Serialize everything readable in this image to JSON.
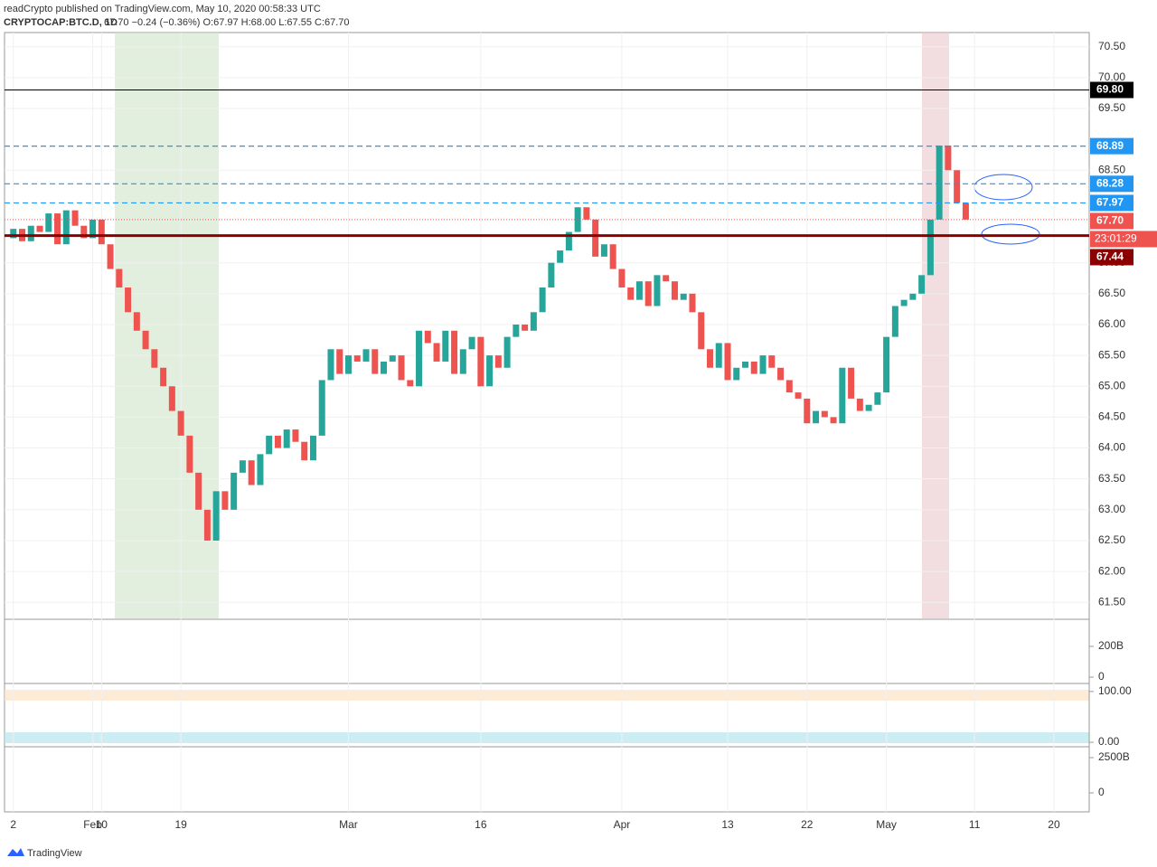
{
  "header": {
    "publisher": "readCrypto published on TradingView.com, May 10, 2020 00:58:33 UTC",
    "symbol": "CRYPTOCAP:BTC.D, 1D",
    "quote": "67.70 −0.24 (−0.36%) O:67.97 H:68.00 L:67.55 C:67.70"
  },
  "chart_data": {
    "type": "candlestick",
    "open": [
      67.4,
      67.55,
      67.35,
      67.6,
      67.5,
      67.8,
      67.3,
      67.85,
      67.6,
      67.4,
      67.7,
      67.3,
      66.9,
      66.6,
      66.2,
      65.9,
      65.6,
      65.3,
      65.0,
      64.6,
      64.2,
      63.6,
      63.0,
      62.5,
      63.3,
      63.0,
      63.6,
      63.8,
      63.4,
      63.9,
      64.2,
      64.0,
      64.3,
      64.1,
      63.8,
      64.2,
      65.1,
      65.6,
      65.2,
      65.5,
      65.4,
      65.6,
      65.2,
      65.4,
      65.5,
      65.1,
      65.0,
      65.9,
      65.7,
      65.4,
      65.9,
      65.2,
      65.6,
      65.8,
      65.0,
      65.5,
      65.3,
      65.8,
      66.0,
      65.9,
      66.2,
      66.6,
      67.0,
      67.2,
      67.5,
      67.9,
      67.7,
      67.1,
      67.3,
      66.9,
      66.6,
      66.4,
      66.7,
      66.3,
      66.8,
      66.7,
      66.4,
      66.5,
      66.2,
      65.6,
      65.3,
      65.7,
      65.1,
      65.3,
      65.4,
      65.2,
      65.5,
      65.3,
      65.1,
      64.9,
      64.8,
      64.4,
      64.6,
      64.5,
      64.4,
      65.3,
      64.8,
      64.6,
      64.7,
      64.9,
      65.8,
      66.3,
      66.4,
      66.5,
      66.8,
      67.7,
      68.9,
      68.5,
      67.97
    ],
    "close": [
      67.55,
      67.35,
      67.6,
      67.5,
      67.8,
      67.3,
      67.85,
      67.6,
      67.4,
      67.7,
      67.3,
      66.9,
      66.6,
      66.2,
      65.9,
      65.6,
      65.3,
      65.0,
      64.6,
      64.2,
      63.6,
      63.0,
      62.5,
      63.3,
      63.0,
      63.6,
      63.8,
      63.4,
      63.9,
      64.2,
      64.0,
      64.3,
      64.1,
      63.8,
      64.2,
      65.1,
      65.6,
      65.2,
      65.5,
      65.4,
      65.6,
      65.2,
      65.4,
      65.5,
      65.1,
      65.0,
      65.9,
      65.7,
      65.4,
      65.9,
      65.2,
      65.6,
      65.8,
      65.0,
      65.5,
      65.3,
      65.8,
      66.0,
      65.9,
      66.2,
      66.6,
      67.0,
      67.2,
      67.5,
      67.9,
      67.7,
      67.1,
      67.3,
      66.9,
      66.6,
      66.4,
      66.7,
      66.3,
      66.8,
      66.7,
      66.4,
      66.5,
      66.2,
      65.6,
      65.3,
      65.7,
      65.1,
      65.3,
      65.4,
      65.2,
      65.5,
      65.3,
      65.1,
      64.9,
      64.8,
      64.4,
      64.6,
      64.5,
      64.4,
      65.3,
      64.8,
      64.6,
      64.7,
      64.9,
      65.8,
      66.3,
      66.4,
      66.5,
      66.8,
      67.7,
      68.9,
      68.5,
      67.97,
      67.7
    ],
    "up_color": "#26a69a",
    "down_color": "#ef5350",
    "xlim": [
      -1,
      122
    ],
    "xticks": [
      {
        "value": 0,
        "label": "2"
      },
      {
        "value": 9,
        "label": "Feb"
      },
      10,
      19,
      {
        "value": 38,
        "label": "Mar"
      },
      {
        "value": 53,
        "label": "16"
      },
      {
        "value": 69,
        "label": "Apr"
      },
      {
        "value": 81,
        "label": "13"
      },
      {
        "value": 90,
        "label": "22"
      },
      {
        "value": 99,
        "label": "May"
      },
      {
        "value": 109,
        "label": "11"
      },
      {
        "value": 118,
        "label": "20"
      }
    ],
    "ylim": [
      61.24,
      70.73
    ],
    "yticks": [
      {
        "value": 61.5,
        "label": "61.50"
      },
      {
        "value": 62,
        "label": "62.00"
      },
      {
        "value": 62.5,
        "label": "62.50"
      },
      {
        "value": 63,
        "label": "63.00"
      },
      {
        "value": 63.5,
        "label": "63.50"
      },
      {
        "value": 64,
        "label": "64.00"
      },
      {
        "value": 64.5,
        "label": "64.50"
      },
      {
        "value": 65,
        "label": "65.00"
      },
      {
        "value": 65.5,
        "label": "65.50"
      },
      {
        "value": 66,
        "label": "66.00"
      },
      {
        "value": 66.5,
        "label": "66.50"
      },
      {
        "value": 67,
        "label": "67.00"
      },
      {
        "value": 68.5,
        "label": "68.50"
      },
      {
        "value": 69.5,
        "label": "69.50"
      },
      {
        "value": 70,
        "label": "70.00"
      },
      {
        "value": 70.5,
        "label": "70.50"
      }
    ],
    "grid": true,
    "levels": [
      {
        "value": 69.8,
        "label": "69.80",
        "color": "#000000",
        "style": "solid"
      },
      {
        "value": 68.89,
        "label": "68.89",
        "color": "#2196f3",
        "style": "dashed"
      },
      {
        "value": 68.28,
        "label": "68.28",
        "color": "#2196f3",
        "style": "dashed"
      },
      {
        "value": 67.97,
        "label": "67.97",
        "color": "#2196f3",
        "style": "dashed"
      },
      {
        "value": 67.7,
        "label": "67.70",
        "color": "#ef5350",
        "style": "dotted"
      },
      {
        "value": 67.44,
        "label": "67.44",
        "color": "#8b0000",
        "style": "thick"
      }
    ],
    "countdown": "23:01:29"
  },
  "panes": [
    {
      "ylim": [
        -35,
        370
      ],
      "ticks": [
        {
          "value": 200,
          "label": "200B"
        },
        0
      ]
    },
    {
      "ylim": [
        -7,
        114
      ],
      "ticks": [
        {
          "value": 100,
          "label": "100.00"
        },
        {
          "value": 0,
          "label": "0.00"
        }
      ]
    },
    {
      "ylim": [
        -1282,
        3205
      ],
      "ticks": [
        {
          "value": 2500,
          "label": "2500B"
        },
        0
      ]
    }
  ],
  "footer": "TradingView"
}
